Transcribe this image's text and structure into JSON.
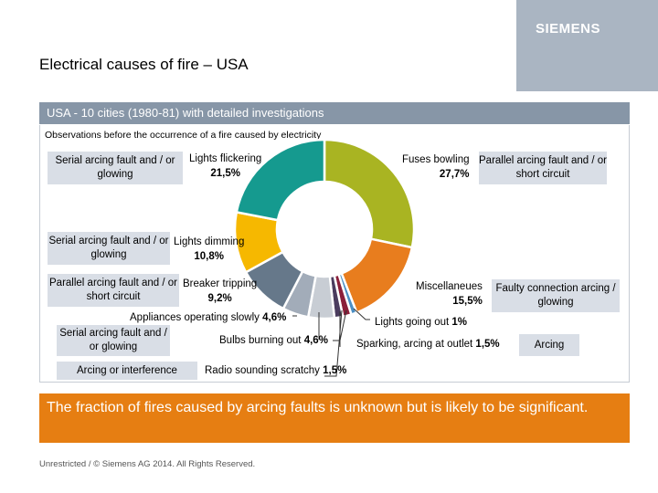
{
  "header": {
    "title": "Electrical causes of fire – USA",
    "logo": "SIEMENS"
  },
  "subheading": "USA - 10 cities (1980-81) with detailed investigations",
  "observation": "Observations before the occurrence of a fire caused by electricity",
  "category_boxes": [
    "Serial arcing fault and / or glowing",
    "Serial arcing fault and / or glowing",
    "Parallel arcing fault and / or short circuit",
    "Serial arcing fault and / or glowing",
    "Arcing or interference",
    "Parallel arcing fault and / or short circuit",
    "Faulty connection arcing / glowing",
    "Arcing"
  ],
  "chart_data": {
    "type": "pie",
    "title": "Observations before the occurrence of a fire caused by electricity",
    "units": "%",
    "slices": [
      {
        "label": "Fuses bowling",
        "value": 27.7,
        "value_text": "27,7%",
        "color": "#a9b422"
      },
      {
        "label": "Miscellaneues",
        "value": 15.5,
        "value_text": "15,5%",
        "color": "#e87d1e"
      },
      {
        "label": "Lights going out",
        "value": 1,
        "value_text": "1%",
        "color": "#4a8fc4"
      },
      {
        "label": "Sparking, arcing at outlet",
        "value": 1.5,
        "value_text": "1,5%",
        "color": "#8a1f3a"
      },
      {
        "label": "Radio sounding scratchy",
        "value": 1.5,
        "value_text": "1,5%",
        "color": "#4a3c5e"
      },
      {
        "label": "Bulbs burning out",
        "value": 4.6,
        "value_text": "4,6%",
        "color": "#c8cdd4"
      },
      {
        "label": "Appliances operating slowly",
        "value": 4.6,
        "value_text": "4,6%",
        "color": "#a2acb9"
      },
      {
        "label": "Breaker tripping",
        "value": 9.2,
        "value_text": "9,2%",
        "color": "#66788a"
      },
      {
        "label": "Lights dimming",
        "value": 10.8,
        "value_text": "10,8%",
        "color": "#f6b800"
      },
      {
        "label": "Lights flickering",
        "value": 21.5,
        "value_text": "21,5%",
        "color": "#159a8f"
      }
    ]
  },
  "callout": "The fraction of fires caused by arcing faults is unknown but is likely to be significant.",
  "footer": "Unrestricted / © Siemens AG 2014. All Rights Reserved."
}
